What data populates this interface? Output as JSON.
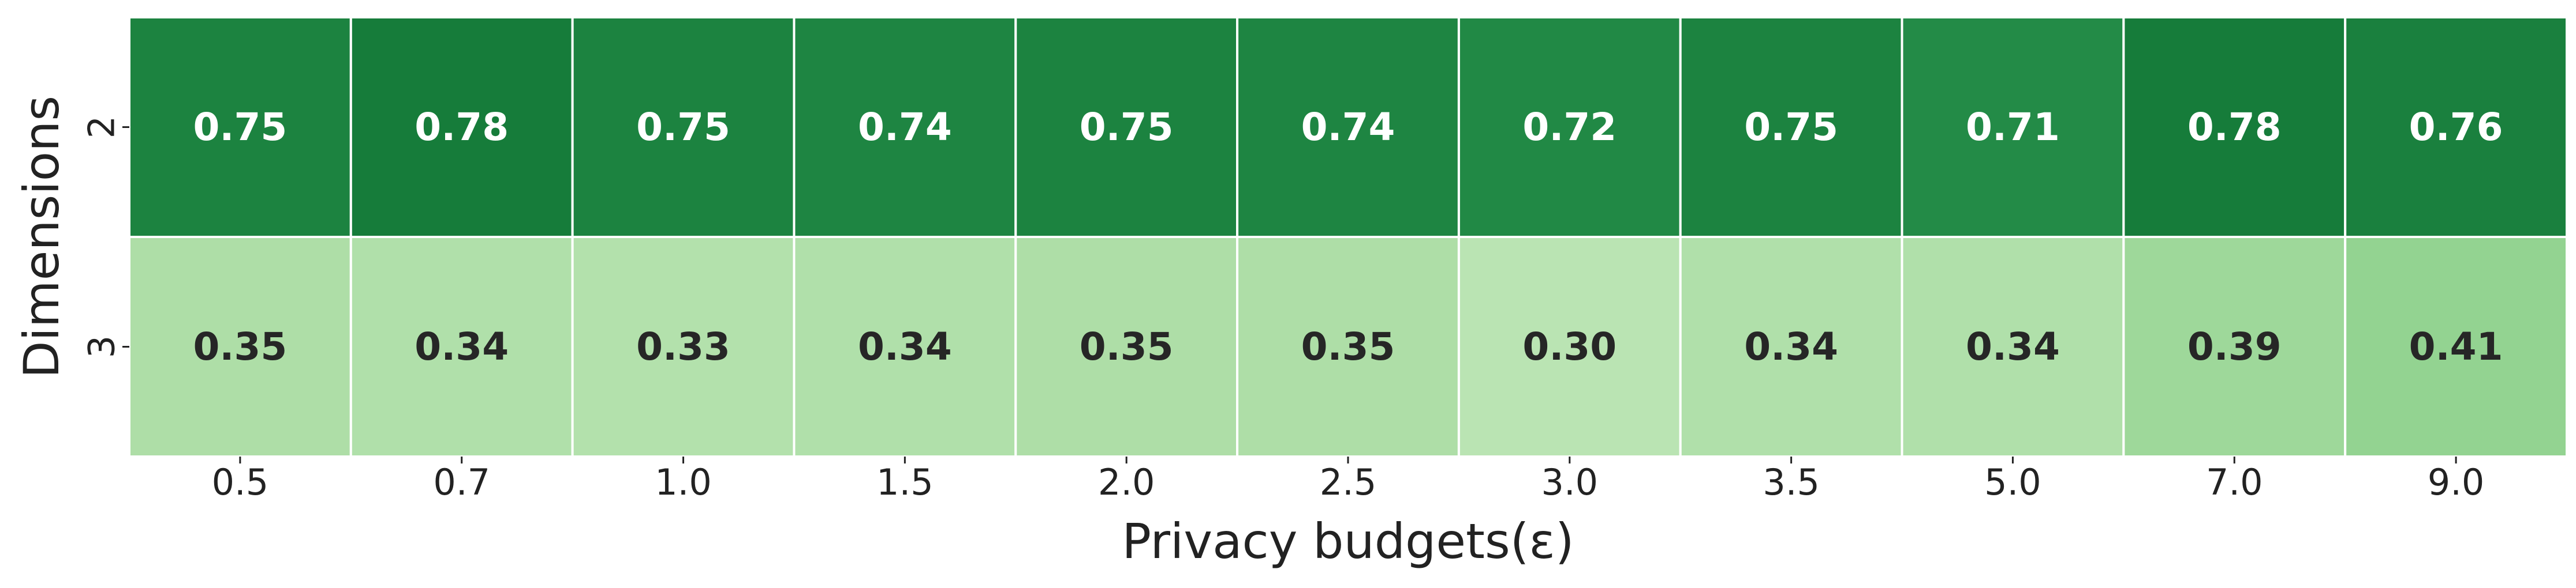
{
  "chart_data": {
    "type": "heatmap",
    "xlabel": "Privacy budgets(ε)",
    "ylabel": "Dimensions",
    "x_categories": [
      "0.5",
      "0.7",
      "1.0",
      "1.5",
      "2.0",
      "2.5",
      "3.0",
      "3.5",
      "5.0",
      "7.0",
      "9.0"
    ],
    "y_categories": [
      "2",
      "3"
    ],
    "values": [
      [
        0.75,
        0.78,
        0.75,
        0.74,
        0.75,
        0.74,
        0.72,
        0.75,
        0.71,
        0.78,
        0.76
      ],
      [
        0.35,
        0.34,
        0.33,
        0.34,
        0.35,
        0.35,
        0.3,
        0.34,
        0.34,
        0.39,
        0.41
      ]
    ],
    "value_labels": [
      [
        "0.75",
        "0.78",
        "0.75",
        "0.74",
        "0.75",
        "0.74",
        "0.72",
        "0.75",
        "0.71",
        "0.78",
        "0.76"
      ],
      [
        "0.35",
        "0.34",
        "0.33",
        "0.34",
        "0.35",
        "0.35",
        "0.30",
        "0.34",
        "0.34",
        "0.39",
        "0.41"
      ]
    ],
    "colormap": "Greens",
    "annotated": true,
    "colorbar": false,
    "grid": false,
    "legend": "none"
  }
}
